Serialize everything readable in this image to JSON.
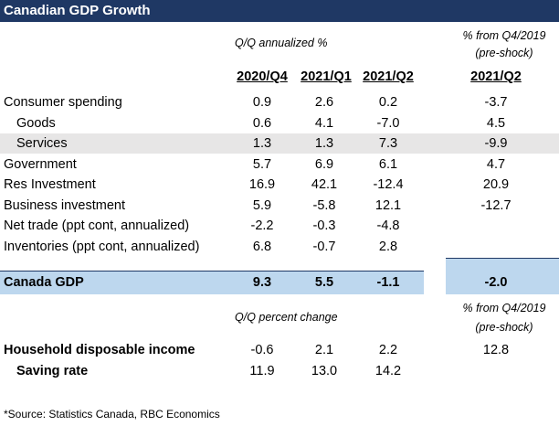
{
  "title": "Canadian GDP Growth",
  "section1": {
    "subhead": "Q/Q annualized %",
    "alt_head_line1": "% from Q4/2019",
    "alt_head_line2": "(pre-shock)",
    "columns": [
      "2020/Q4",
      "2021/Q1",
      "2021/Q2"
    ],
    "alt_column": "2021/Q2"
  },
  "rows": [
    {
      "label": "Consumer spending",
      "values": [
        "0.9",
        "2.6",
        "0.2"
      ],
      "alt": "-3.7"
    },
    {
      "label": "Goods",
      "values": [
        "0.6",
        "4.1",
        "-7.0"
      ],
      "alt": "4.5"
    },
    {
      "label": "Services",
      "values": [
        "1.3",
        "1.3",
        "7.3"
      ],
      "alt": "-9.9"
    },
    {
      "label": "Government",
      "values": [
        "5.7",
        "6.9",
        "6.1"
      ],
      "alt": "4.7"
    },
    {
      "label": "Res Investment",
      "values": [
        "16.9",
        "42.1",
        "-12.4"
      ],
      "alt": "20.9"
    },
    {
      "label": "Business investment",
      "values": [
        "5.9",
        "-5.8",
        "12.1"
      ],
      "alt": "-12.7"
    },
    {
      "label": "Net trade (ppt cont, annualized)",
      "values": [
        "-2.2",
        "-0.3",
        "-4.8"
      ],
      "alt": ""
    },
    {
      "label": "Inventories (ppt cont, annualized)",
      "values": [
        "6.8",
        "-0.7",
        "2.8"
      ],
      "alt": ""
    }
  ],
  "gdp": {
    "label": "Canada GDP",
    "values": [
      "9.3",
      "5.5",
      "-1.1"
    ],
    "alt": "-2.0"
  },
  "section2": {
    "subhead": "Q/Q percent change",
    "alt_head_line1": "% from Q4/2019",
    "alt_head_line2": "(pre-shock)",
    "rows": [
      {
        "label": "Household disposable income",
        "values": [
          "-0.6",
          "2.1",
          "2.2"
        ],
        "alt": "12.8"
      },
      {
        "label": "Saving rate",
        "values": [
          "11.9",
          "13.0",
          "14.2"
        ],
        "alt": ""
      }
    ]
  },
  "source": "*Source:  Statistics Canada, RBC Economics",
  "colors": {
    "title_bg": "#1f3864",
    "gdp_band": "#bdd7ee",
    "row_shade": "#e7e6e6"
  }
}
